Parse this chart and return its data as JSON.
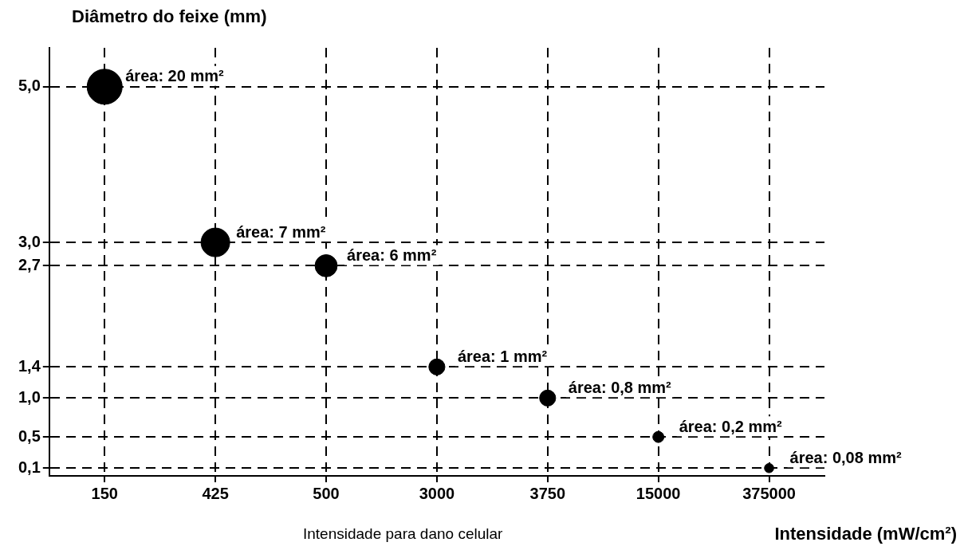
{
  "chart_data": {
    "type": "bubble",
    "xlabel": "Intensidade (mW/cm²)",
    "ylabel": "Diâmetro do feixe (mm)",
    "categories": [
      "150",
      "425",
      "500",
      "3000",
      "3750",
      "15000",
      "375000"
    ],
    "series": [
      {
        "color": "#000000",
        "values": [
          5.0,
          3.0,
          2.7,
          1.4,
          1.0,
          0.5,
          0.1
        ],
        "sizes": [
          1,
          0.67,
          0.4,
          0.21,
          0.21,
          0.1,
          0.07
        ]
      }
    ],
    "ylim": [
      0,
      5.5
    ],
    "yticks": [
      {
        "value": 0.1,
        "label": "0,1"
      },
      {
        "value": 0.5,
        "label": "0,5"
      },
      {
        "value": 1.0,
        "label": "1,0"
      },
      {
        "value": 1.4,
        "label": "1,4"
      },
      {
        "value": 2.7,
        "label": "2,7"
      },
      {
        "value": 3.0,
        "label": "3,0"
      },
      {
        "value": 5.0,
        "label": "5,0"
      }
    ],
    "grid": true,
    "legend": false,
    "marker": "circle",
    "line_style": "dashed",
    "annotations": [
      {
        "text": "área: 20 mm²",
        "x": "150",
        "y": 5.0
      },
      {
        "text": "área: 7 mm²",
        "x": "425",
        "y": 3.0
      },
      {
        "text": "área: 6 mm²",
        "x": "500",
        "y": 2.7
      },
      {
        "text": "área: 1 mm²",
        "x": "3000",
        "y": 1.4
      },
      {
        "text": "área: 0,8 mm²",
        "x": "3750",
        "y": 1.0
      },
      {
        "text": "área: 0,2 mm²",
        "x": "15000",
        "y": 0.5
      },
      {
        "text": "área: 0,08 mm²",
        "x": "375000",
        "y": 0.1
      },
      "Intensidade para dano celular"
    ]
  }
}
